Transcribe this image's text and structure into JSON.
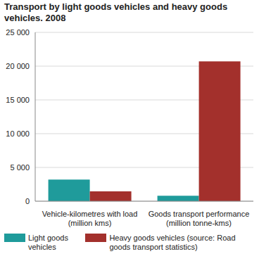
{
  "chart_data": {
    "type": "bar",
    "title": "Transport by light goods vehicles and heavy goods vehicles. 2008",
    "categories": [
      "Vehicle-kilometres with load (million kms)",
      "Goods transport performance (million tonne-kms)"
    ],
    "series": [
      {
        "name": "Light goods vehicles",
        "color": "#1f9b9b",
        "values": [
          3200,
          800
        ]
      },
      {
        "name": "Heavy goods vehicles (source: Road goods transport statistics)",
        "color": "#a3302c",
        "values": [
          1450,
          20700
        ]
      }
    ],
    "ylim": [
      0,
      25000
    ],
    "yticks": [
      0,
      {
        "value": 5000,
        "label": "5 000"
      },
      {
        "value": 10000,
        "label": "10 000"
      },
      {
        "value": 15000,
        "label": "15 000"
      },
      {
        "value": 20000,
        "label": "20 000"
      },
      {
        "value": 25000,
        "label": "25 000"
      }
    ],
    "grid": true,
    "legend": "bottom"
  }
}
